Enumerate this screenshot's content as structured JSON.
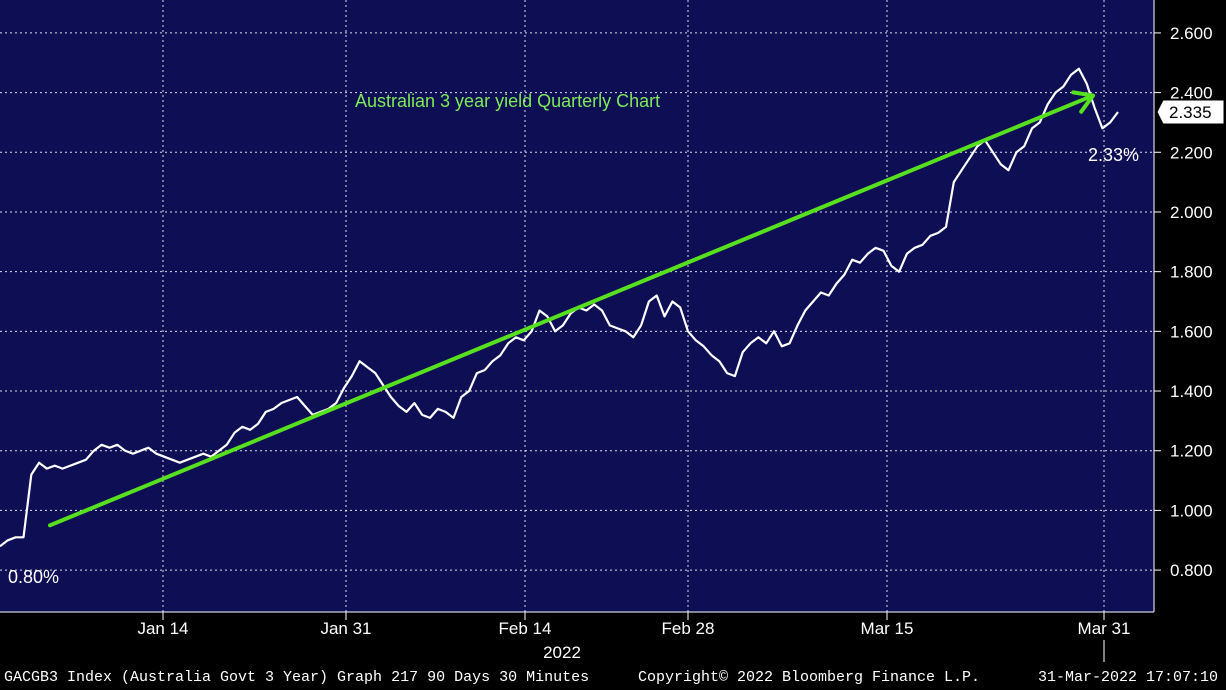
{
  "chart_data": {
    "type": "line",
    "title": "Australian 3 year yield Quarterly Chart",
    "ylim": [
      0.74,
      2.66
    ],
    "y_ticks": [
      "2.600",
      "2.400",
      "2.200",
      "2.000",
      "1.800",
      "1.600",
      "1.400",
      "1.200",
      "1.000",
      "0.800"
    ],
    "x_ticks": [
      "Jan 14",
      "Jan 31",
      "Feb 14",
      "Feb 28",
      "Mar 15",
      "Mar 31"
    ],
    "x_year_label": "2022",
    "grid": true,
    "series": [
      {
        "values": [
          0.88,
          0.9,
          0.91,
          0.91,
          1.12,
          1.16,
          1.14,
          1.15,
          1.14,
          1.15,
          1.16,
          1.17,
          1.2,
          1.22,
          1.21,
          1.22,
          1.2,
          1.19,
          1.2,
          1.21,
          1.19,
          1.18,
          1.17,
          1.16,
          1.17,
          1.18,
          1.19,
          1.18,
          1.2,
          1.22,
          1.26,
          1.28,
          1.27,
          1.29,
          1.33,
          1.34,
          1.36,
          1.37,
          1.38,
          1.35,
          1.32,
          1.33,
          1.34,
          1.36,
          1.41,
          1.45,
          1.5,
          1.48,
          1.46,
          1.42,
          1.38,
          1.35,
          1.33,
          1.36,
          1.32,
          1.31,
          1.34,
          1.33,
          1.31,
          1.38,
          1.4,
          1.46,
          1.47,
          1.5,
          1.52,
          1.56,
          1.58,
          1.57,
          1.6,
          1.67,
          1.65,
          1.6,
          1.62,
          1.66,
          1.68,
          1.67,
          1.69,
          1.67,
          1.62,
          1.61,
          1.6,
          1.58,
          1.62,
          1.7,
          1.72,
          1.65,
          1.7,
          1.68,
          1.6,
          1.57,
          1.55,
          1.52,
          1.5,
          1.46,
          1.45,
          1.53,
          1.56,
          1.58,
          1.56,
          1.6,
          1.55,
          1.56,
          1.62,
          1.67,
          1.7,
          1.73,
          1.72,
          1.76,
          1.79,
          1.84,
          1.83,
          1.86,
          1.88,
          1.87,
          1.82,
          1.8,
          1.86,
          1.88,
          1.89,
          1.92,
          1.93,
          1.95,
          2.1,
          2.14,
          2.18,
          2.22,
          2.24,
          2.2,
          2.16,
          2.14,
          2.2,
          2.22,
          2.28,
          2.3,
          2.36,
          2.4,
          2.42,
          2.46,
          2.48,
          2.43,
          2.35,
          2.28,
          2.3,
          2.335
        ]
      },
      {
        "name": "trend",
        "start": 0.95,
        "end": 2.39
      }
    ],
    "last_value": "2.335",
    "annotations": [
      "0.80%",
      "2.33%"
    ],
    "colors": {
      "plot_bg": "#0e0e55",
      "line": "#ffffff",
      "trend": "#57e01e",
      "title": "#7dea57",
      "grid": "#ffffff"
    }
  },
  "footer": {
    "left": "GACGB3 Index (Australia Govt 3 Year) Graph 217 90 Days 30 Minutes",
    "middle": "Copyright© 2022 Bloomberg Finance L.P.",
    "right": "31-Mar-2022 17:07:10"
  }
}
